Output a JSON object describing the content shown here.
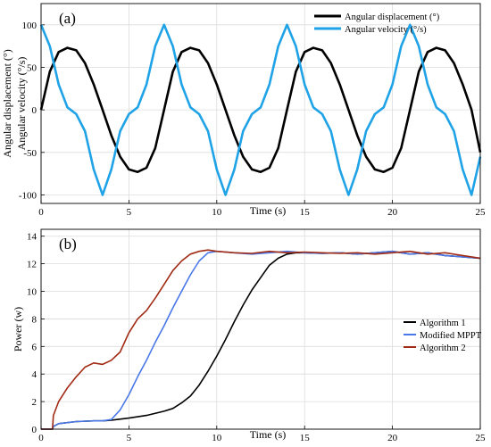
{
  "chart_data": [
    {
      "type": "line",
      "panel_label": "(a)",
      "xlabel": "Time (s)",
      "ylabel": [
        "Angular displacement (°)",
        "Angular velocity (°/s)"
      ],
      "xlim": [
        0,
        25
      ],
      "ylim": [
        -110,
        125
      ],
      "xticks": [
        0,
        5,
        10,
        15,
        20,
        25
      ],
      "yticks": [
        -100,
        -50,
        0,
        50,
        100
      ],
      "grid": true,
      "legend_position": "top-right",
      "series": [
        {
          "name": "Angular displacement (°)",
          "color": "#000000",
          "x": [
            0,
            0.5,
            1,
            1.5,
            2,
            2.5,
            3,
            3.5,
            4,
            4.5,
            5,
            5.5,
            6,
            6.5,
            7,
            7.5,
            8,
            8.5,
            9,
            9.5,
            10,
            10.5,
            11,
            11.5,
            12,
            12.5,
            13,
            13.5,
            14,
            14.5,
            15,
            15.5,
            16,
            16.5,
            17,
            17.5,
            18,
            18.5,
            19,
            19.5,
            20,
            20.5,
            21,
            21.5,
            22,
            22.5,
            23,
            23.5,
            24,
            24.5,
            25
          ],
          "y": [
            0,
            45,
            68,
            73,
            70,
            55,
            30,
            0,
            -30,
            -55,
            -70,
            -73,
            -68,
            -45,
            0,
            45,
            68,
            73,
            70,
            55,
            30,
            0,
            -30,
            -55,
            -70,
            -73,
            -68,
            -45,
            0,
            45,
            68,
            73,
            70,
            55,
            30,
            0,
            -30,
            -55,
            -70,
            -73,
            -68,
            -45,
            0,
            45,
            68,
            73,
            70,
            55,
            30,
            0,
            -50
          ]
        },
        {
          "name": "Angular velocity (°/s)",
          "color": "#1fa3e6",
          "x": [
            0,
            0.5,
            1,
            1.5,
            2,
            2.5,
            3,
            3.5,
            4,
            4.5,
            5,
            5.5,
            6,
            6.5,
            7,
            7.5,
            8,
            8.5,
            9,
            9.5,
            10,
            10.5,
            11,
            11.5,
            12,
            12.5,
            13,
            13.5,
            14,
            14.5,
            15,
            15.5,
            16,
            16.5,
            17,
            17.5,
            18,
            18.5,
            19,
            19.5,
            20,
            20.5,
            21,
            21.5,
            22,
            22.5,
            23,
            23.5,
            24,
            24.5,
            25
          ],
          "y": [
            100,
            75,
            30,
            3,
            -5,
            -25,
            -70,
            -100,
            -70,
            -25,
            -5,
            3,
            30,
            75,
            100,
            75,
            30,
            3,
            -5,
            -25,
            -70,
            -100,
            -70,
            -25,
            -5,
            3,
            30,
            75,
            100,
            75,
            30,
            3,
            -5,
            -25,
            -70,
            -100,
            -70,
            -25,
            -5,
            3,
            30,
            75,
            100,
            75,
            30,
            3,
            -5,
            -25,
            -70,
            -100,
            -55
          ]
        }
      ]
    },
    {
      "type": "line",
      "panel_label": "(b)",
      "xlabel": "Time (s)",
      "ylabel": "Power (w)",
      "xlim": [
        0,
        25
      ],
      "ylim": [
        0,
        14.5
      ],
      "xticks": [
        0,
        5,
        10,
        15,
        20,
        25
      ],
      "yticks": [
        0,
        2,
        4,
        6,
        8,
        10,
        12,
        14
      ],
      "grid": true,
      "legend_position": "right",
      "series": [
        {
          "name": "Algorithm 1",
          "color": "#000000",
          "x": [
            0,
            0.65,
            0.7,
            1,
            2,
            3,
            3.5,
            4,
            5,
            6,
            7,
            7.5,
            8,
            8.5,
            9,
            9.5,
            10,
            10.5,
            11,
            11.5,
            12,
            12.5,
            13,
            13.5,
            14,
            14.5,
            15,
            16,
            17,
            18,
            19,
            20,
            21,
            22,
            23,
            24,
            25
          ],
          "y": [
            0,
            0,
            0.2,
            0.4,
            0.55,
            0.6,
            0.6,
            0.65,
            0.8,
            1.0,
            1.3,
            1.5,
            1.9,
            2.4,
            3.2,
            4.2,
            5.3,
            6.5,
            7.8,
            9.0,
            10.1,
            11.0,
            11.9,
            12.4,
            12.7,
            12.8,
            12.8,
            12.75,
            12.8,
            12.7,
            12.8,
            12.9,
            12.7,
            12.8,
            12.6,
            12.5,
            12.4
          ]
        },
        {
          "name": "Modified MPPT",
          "color": "#4a78e8",
          "x": [
            0,
            0.65,
            0.7,
            1,
            2,
            3,
            3.5,
            4,
            4.5,
            5,
            5.5,
            6,
            6.5,
            7,
            7.5,
            8,
            8.5,
            9,
            9.5,
            10,
            10.5,
            11,
            12,
            13,
            14,
            15,
            16,
            17,
            18,
            19,
            20,
            21,
            22,
            23,
            24,
            25
          ],
          "y": [
            0,
            0,
            0.2,
            0.4,
            0.55,
            0.6,
            0.6,
            0.7,
            1.4,
            2.5,
            3.8,
            5.0,
            6.3,
            7.5,
            8.8,
            10.0,
            11.2,
            12.2,
            12.8,
            12.9,
            12.85,
            12.8,
            12.7,
            12.8,
            12.9,
            12.8,
            12.75,
            12.8,
            12.7,
            12.8,
            12.9,
            12.7,
            12.8,
            12.6,
            12.5,
            12.4
          ]
        },
        {
          "name": "Algorithm 2",
          "color": "#a02a14",
          "x": [
            0,
            0.65,
            0.7,
            1,
            1.5,
            2,
            2.5,
            3,
            3.5,
            4,
            4.5,
            5,
            5.5,
            6,
            6.5,
            7,
            7.5,
            8,
            8.5,
            9,
            9.5,
            10,
            11,
            12,
            13,
            14,
            15,
            16,
            17,
            18,
            19,
            20,
            21,
            22,
            23,
            24,
            25
          ],
          "y": [
            0,
            0,
            1.0,
            2.0,
            3.0,
            3.8,
            4.5,
            4.8,
            4.7,
            5.0,
            5.6,
            7.0,
            8.0,
            8.6,
            9.5,
            10.5,
            11.5,
            12.2,
            12.7,
            12.9,
            13.0,
            12.9,
            12.8,
            12.75,
            12.9,
            12.8,
            12.85,
            12.8,
            12.75,
            12.8,
            12.7,
            12.8,
            12.9,
            12.7,
            12.8,
            12.6,
            12.4
          ]
        }
      ]
    }
  ]
}
